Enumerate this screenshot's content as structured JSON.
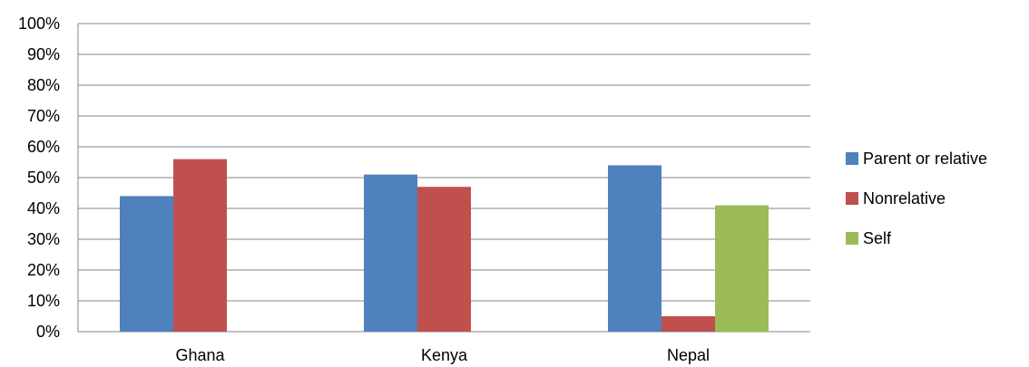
{
  "chart_data": {
    "type": "bar",
    "title": "",
    "xlabel": "",
    "ylabel": "",
    "categories": [
      "Ghana",
      "Kenya",
      "Nepal"
    ],
    "series": [
      {
        "name": "Parent or relative",
        "color": "#4f81bd",
        "values": [
          44,
          51,
          54
        ]
      },
      {
        "name": "Nonrelative",
        "color": "#c0504d",
        "values": [
          56,
          47,
          5
        ]
      },
      {
        "name": "Self",
        "color": "#9bbb59",
        "values": [
          null,
          null,
          41
        ]
      }
    ],
    "ylim": [
      0,
      100
    ],
    "yticks": [
      "0%",
      "10%",
      "20%",
      "30%",
      "40%",
      "50%",
      "60%",
      "70%",
      "80%",
      "90%",
      "100%"
    ],
    "grid": true,
    "legend_position": "right",
    "gridline_color": "#868686"
  }
}
